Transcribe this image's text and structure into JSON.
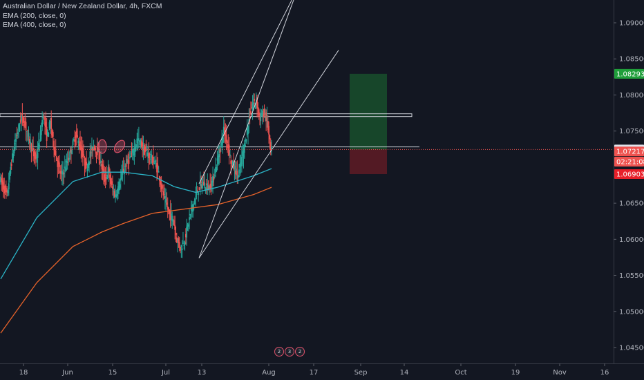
{
  "legend": {
    "title": "Australian Dollar / New Zealand Dollar, 4h, FXCM",
    "ema1": "EMA (200, close, 0)",
    "ema2": "EMA (400, close, 0)"
  },
  "badge_digits": [
    "2",
    "3",
    "2"
  ],
  "colors": {
    "background": "#131722",
    "up": "#26a69a",
    "down": "#ef5350",
    "ema200": "#2bb5c8",
    "ema400": "#e8632a",
    "trendline": "#d1d4dc",
    "target": "#1f9e3a",
    "stop": "#e8202a",
    "marker": "#e0526b"
  },
  "chart_data": {
    "type": "candlestick",
    "symbol": "AUDNZD",
    "timeframe": "4h",
    "x_ticks": [
      "18",
      "Jun",
      "15",
      "Jul",
      "13",
      "Aug",
      "17",
      "Sep",
      "14",
      "Oct",
      "19",
      "Nov",
      "16"
    ],
    "y_ticks": [
      "1.09000",
      "1.08500",
      "1.08000",
      "1.07500",
      "1.06500",
      "1.06000",
      "1.05500",
      "1.05000",
      "1.04500"
    ],
    "ylim": [
      1.041,
      1.095
    ],
    "price_path": [
      [
        0,
        1.0685
      ],
      [
        2,
        1.0672
      ],
      [
        4,
        1.066
      ],
      [
        6,
        1.07
      ],
      [
        8,
        1.0728
      ],
      [
        10,
        1.075
      ],
      [
        12,
        1.077
      ],
      [
        14,
        1.0758
      ],
      [
        16,
        1.0742
      ],
      [
        18,
        1.0722
      ],
      [
        20,
        1.071
      ],
      [
        22,
        1.0735
      ],
      [
        24,
        1.0775
      ],
      [
        26,
        1.0742
      ],
      [
        28,
        1.0762
      ],
      [
        30,
        1.0728
      ],
      [
        32,
        1.0705
      ],
      [
        34,
        1.0688
      ],
      [
        36,
        1.0698
      ],
      [
        38,
        1.0712
      ],
      [
        40,
        1.0728
      ],
      [
        42,
        1.0745
      ],
      [
        44,
        1.0732
      ],
      [
        46,
        1.0715
      ],
      [
        48,
        1.0698
      ],
      [
        50,
        1.0718
      ],
      [
        52,
        1.073
      ],
      [
        54,
        1.0722
      ],
      [
        56,
        1.0705
      ],
      [
        58,
        1.0682
      ],
      [
        60,
        1.0696
      ],
      [
        62,
        1.0672
      ],
      [
        64,
        1.066
      ],
      [
        66,
        1.0676
      ],
      [
        68,
        1.0692
      ],
      [
        70,
        1.0704
      ],
      [
        72,
        1.0712
      ],
      [
        74,
        1.0722
      ],
      [
        76,
        1.0738
      ],
      [
        78,
        1.0734
      ],
      [
        80,
        1.0722
      ],
      [
        82,
        1.0718
      ],
      [
        84,
        1.0712
      ],
      [
        86,
        1.0705
      ],
      [
        88,
        1.0692
      ],
      [
        90,
        1.0666
      ],
      [
        92,
        1.065
      ],
      [
        94,
        1.0634
      ],
      [
        96,
        1.0628
      ],
      [
        98,
        1.06
      ],
      [
        100,
        1.0588
      ],
      [
        102,
        1.0596
      ],
      [
        104,
        1.0618
      ],
      [
        106,
        1.064
      ],
      [
        108,
        1.0656
      ],
      [
        110,
        1.067
      ],
      [
        112,
        1.0678
      ],
      [
        114,
        1.0675
      ],
      [
        116,
        1.0672
      ],
      [
        118,
        1.0682
      ],
      [
        120,
        1.0704
      ],
      [
        122,
        1.0725
      ],
      [
        124,
        1.0752
      ],
      [
        126,
        1.0735
      ],
      [
        128,
        1.0708
      ],
      [
        130,
        1.0698
      ],
      [
        132,
        1.0688
      ],
      [
        134,
        1.0712
      ],
      [
        136,
        1.0736
      ],
      [
        138,
        1.0766
      ],
      [
        140,
        1.0788
      ],
      [
        142,
        1.0792
      ],
      [
        144,
        1.0768
      ],
      [
        146,
        1.0775
      ],
      [
        148,
        1.0765
      ],
      [
        150,
        1.0722
      ]
    ],
    "ema200": [
      [
        0,
        1.0545
      ],
      [
        20,
        1.063
      ],
      [
        40,
        1.068
      ],
      [
        56,
        1.0693
      ],
      [
        68,
        1.0693
      ],
      [
        84,
        1.0688
      ],
      [
        96,
        1.0673
      ],
      [
        108,
        1.0665
      ],
      [
        120,
        1.0672
      ],
      [
        140,
        1.0688
      ],
      [
        150,
        1.0698
      ]
    ],
    "ema400": [
      [
        0,
        1.047
      ],
      [
        20,
        1.054
      ],
      [
        40,
        1.059
      ],
      [
        56,
        1.061
      ],
      [
        68,
        1.0622
      ],
      [
        84,
        1.0636
      ],
      [
        96,
        1.064
      ],
      [
        108,
        1.0644
      ],
      [
        120,
        1.0648
      ],
      [
        140,
        1.0662
      ],
      [
        150,
        1.0672
      ]
    ],
    "horizontal_levels": [
      1.0772,
      1.077,
      1.0728
    ],
    "current_price_line": 1.07244,
    "trendlines": [
      {
        "from": [
          288,
          1.0574
        ],
        "to": [
          432,
          1.095
        ]
      },
      {
        "from": [
          288,
          1.0574
        ],
        "to": [
          490,
          1.0862
        ]
      },
      {
        "from": [
          288,
          1.0677
        ],
        "to": [
          432,
          1.095
        ]
      }
    ],
    "position": {
      "target": 1.08293,
      "entry": 1.07244,
      "stop": 1.06903
    },
    "price_tags": [
      {
        "label": "1.08293",
        "price": 1.08293,
        "color": "#1f9e3a"
      },
      {
        "label": "1.07244",
        "price": 1.07244,
        "color": "#e0e3eb"
      },
      {
        "label": "1.07217",
        "price": 1.07217,
        "color": "#ef5350"
      },
      {
        "label": "02:21:08",
        "price": 1.07075,
        "color": "#ef5350"
      },
      {
        "label": "1.06903",
        "price": 1.06903,
        "color": "#e8202a"
      }
    ]
  }
}
